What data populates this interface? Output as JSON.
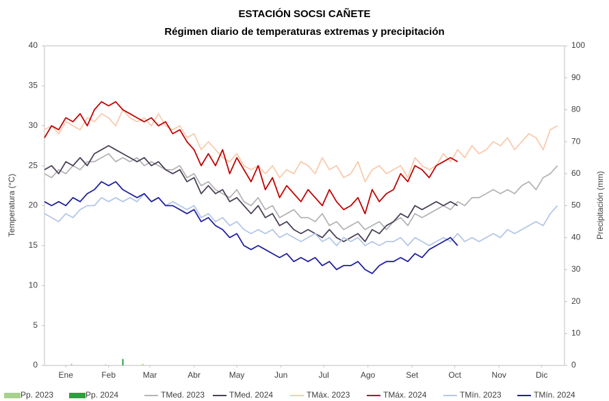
{
  "chart_data": {
    "type": "combo",
    "title": "ESTACIÓN SOCSI CAÑETE",
    "subtitle": "Régimen diario de temperaturas extremas y precipitación",
    "y_label": "Temperatura (°C)",
    "y2_label": "Precipitación (mm)",
    "x": [
      1,
      6,
      11,
      16,
      21,
      26,
      31,
      36,
      41,
      46,
      51,
      56,
      61,
      66,
      71,
      76,
      81,
      86,
      91,
      96,
      101,
      106,
      111,
      116,
      121,
      126,
      131,
      136,
      141,
      146,
      151,
      156,
      161,
      166,
      171,
      176,
      181,
      186,
      191,
      196,
      201,
      206,
      211,
      216,
      221,
      226,
      231,
      236,
      241,
      246,
      251,
      256,
      261,
      266,
      271,
      276,
      281,
      286,
      291,
      296,
      301,
      306,
      311,
      316,
      321,
      326,
      331,
      336,
      341,
      346,
      351,
      356,
      361
    ],
    "xlim": [
      1,
      366
    ],
    "xticks": [
      {
        "value": 16,
        "label": "Ene"
      },
      {
        "value": 46,
        "label": "Feb"
      },
      {
        "value": 75,
        "label": "Mar"
      },
      {
        "value": 106,
        "label": "Abr"
      },
      {
        "value": 136,
        "label": "May"
      },
      {
        "value": 167,
        "label": "Jun"
      },
      {
        "value": 197,
        "label": "Jul"
      },
      {
        "value": 228,
        "label": "Ago"
      },
      {
        "value": 259,
        "label": "Set"
      },
      {
        "value": 289,
        "label": "Oct"
      },
      {
        "value": 320,
        "label": "Nov"
      },
      {
        "value": 350,
        "label": "Dic"
      }
    ],
    "ylim": [
      0,
      40
    ],
    "yticks": [
      0,
      5,
      10,
      15,
      20,
      25,
      30,
      35,
      40
    ],
    "y2lim": [
      0,
      100
    ],
    "y2ticks": [
      0,
      10,
      20,
      30,
      40,
      50,
      60,
      70,
      80,
      90,
      100
    ],
    "series": [
      {
        "name": "Pp. 2023",
        "type": "bar",
        "axis": "y2",
        "color": "#a9d18e",
        "x": [
          20,
          44,
          70
        ],
        "values": [
          0.5,
          0.3,
          0.5
        ]
      },
      {
        "name": "Pp. 2024",
        "type": "bar",
        "axis": "y2",
        "color": "#2e9e3e",
        "x": [
          56
        ],
        "values": [
          2
        ]
      },
      {
        "name": "TMed. 2023",
        "type": "line",
        "color": "#b4b4b4",
        "values": [
          24,
          23.5,
          24.5,
          24,
          25,
          24.5,
          25.5,
          25.5,
          26,
          26.5,
          25.5,
          26,
          25.5,
          26,
          25,
          25.5,
          25,
          24.5,
          24.5,
          25,
          23.5,
          24,
          22.5,
          23,
          22,
          21.5,
          21,
          22,
          20.5,
          20,
          21,
          19.5,
          20,
          18.5,
          19,
          19.5,
          18.5,
          18.5,
          18,
          19,
          17.5,
          18,
          17,
          17.5,
          18,
          17,
          17.5,
          18,
          17,
          18,
          18.5,
          17.5,
          19,
          18.5,
          19,
          19.5,
          20,
          19.5,
          20.5,
          20,
          21,
          21,
          21.5,
          22,
          21.5,
          22,
          21.5,
          22.5,
          23,
          22,
          23.5,
          24,
          25
        ]
      },
      {
        "name": "TMed. 2024",
        "type": "line",
        "color": "#4a3f56",
        "values": [
          24.5,
          25,
          24,
          25.5,
          25,
          26,
          25,
          26.5,
          27,
          27.5,
          27,
          26.5,
          26,
          25.5,
          26,
          25,
          25.5,
          24.5,
          24,
          24.5,
          23,
          23.5,
          21.5,
          22.5,
          21.5,
          22,
          20.5,
          21,
          20,
          19,
          20,
          18.5,
          19,
          17.5,
          18,
          17,
          16.5,
          17,
          16.5,
          16,
          17,
          16,
          15.5,
          16,
          16.5,
          15.5,
          17,
          16.5,
          17.5,
          18,
          19,
          18.5,
          20,
          19.5,
          20,
          20.5,
          20,
          20.5,
          20,
          null,
          null,
          null,
          null,
          null,
          null,
          null,
          null,
          null,
          null,
          null,
          null,
          null,
          null
        ]
      },
      {
        "name": "TMáx. 2023",
        "type": "line",
        "color": "#f8cbad",
        "values": [
          29.5,
          30,
          29,
          30.5,
          30,
          29.5,
          31,
          30.5,
          31.5,
          31,
          30,
          32,
          31,
          30.5,
          31,
          30,
          31.5,
          30,
          29.5,
          30,
          28.5,
          29,
          27,
          28,
          27,
          26,
          25.5,
          26.5,
          25,
          24.5,
          25,
          24,
          25,
          23.5,
          24.5,
          24,
          25.5,
          25,
          24,
          26,
          24.5,
          25,
          23.5,
          24,
          25.5,
          23,
          24.5,
          25,
          24,
          24.5,
          25,
          23.5,
          26,
          25,
          24.5,
          25,
          26.5,
          25.5,
          27,
          26,
          27.5,
          26.5,
          27,
          28,
          27.5,
          28.5,
          27,
          28,
          29,
          28.5,
          27,
          29.5,
          30
        ]
      },
      {
        "name": "TMáx. 2024",
        "type": "line",
        "color": "#c00000",
        "values": [
          28.5,
          30,
          29.5,
          31,
          30.5,
          31.5,
          30,
          32,
          33,
          32.5,
          33,
          32,
          31.5,
          31,
          30.5,
          31,
          30,
          30.5,
          29,
          29.5,
          28,
          27,
          25,
          26.5,
          25,
          27,
          24,
          26,
          24.5,
          23,
          25,
          22,
          23.5,
          21,
          22.5,
          21.5,
          20.5,
          22,
          21,
          20,
          22,
          20.5,
          19.5,
          20,
          21,
          19,
          22,
          20.5,
          21.5,
          22,
          24,
          23,
          25,
          24.5,
          23.5,
          25,
          25.5,
          26,
          25.5,
          null,
          null,
          null,
          null,
          null,
          null,
          null,
          null,
          null,
          null,
          null,
          null,
          null,
          null
        ]
      },
      {
        "name": "TMín. 2023",
        "type": "line",
        "color": "#b4c7e7",
        "values": [
          19,
          18.5,
          18,
          19,
          18.5,
          19.5,
          20,
          20,
          21,
          20.5,
          21,
          20.5,
          21,
          20.5,
          21.5,
          20.5,
          21,
          20,
          20.5,
          20,
          19.5,
          20,
          18.5,
          19,
          18,
          18.5,
          17.5,
          18,
          17,
          16.5,
          17,
          16.5,
          17,
          16,
          16.5,
          16,
          15.5,
          16,
          16.5,
          15.5,
          16,
          15,
          16,
          15.5,
          16,
          15,
          15.5,
          15,
          15.5,
          15.5,
          16,
          15,
          16,
          15.5,
          15,
          15.5,
          16,
          15.5,
          16.5,
          15.5,
          16,
          15.5,
          16,
          16.5,
          16,
          17,
          16.5,
          17,
          17.5,
          18,
          17.5,
          19,
          20
        ]
      },
      {
        "name": "TMín. 2024",
        "type": "line",
        "color": "#1f1f9e",
        "values": [
          20.5,
          20,
          20.5,
          20,
          21,
          20.5,
          21.5,
          22,
          23,
          22.5,
          23,
          22,
          21.5,
          21,
          21.5,
          20.5,
          21,
          20,
          20,
          19.5,
          19,
          19.5,
          18,
          18.5,
          17.5,
          17,
          16,
          16.5,
          15,
          14.5,
          15,
          14.5,
          14,
          13.5,
          14,
          13,
          13.5,
          13,
          13.5,
          12.5,
          13,
          12,
          12.5,
          12.5,
          13,
          12,
          11.5,
          12.5,
          13,
          13,
          13.5,
          13,
          14,
          13.5,
          14.5,
          15,
          15.5,
          16,
          15,
          null,
          null,
          null,
          null,
          null,
          null,
          null,
          null,
          null,
          null,
          null,
          null,
          null,
          null
        ]
      }
    ]
  }
}
